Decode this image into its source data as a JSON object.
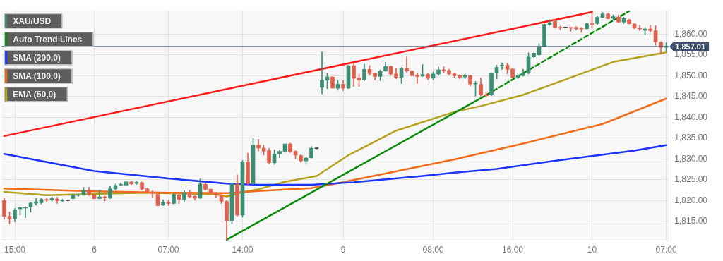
{
  "chart_data": {
    "type": "candlestick",
    "categories": [
      null,
      null,
      "15:00",
      null,
      null,
      null,
      null,
      null,
      null,
      null,
      null,
      null,
      null,
      null,
      null,
      null,
      null,
      "6",
      null,
      null,
      null,
      null,
      null,
      null,
      null,
      null,
      null,
      null,
      null,
      null,
      null,
      "07:00",
      null,
      null,
      null,
      null,
      null,
      null,
      null,
      null,
      null,
      null,
      null,
      null,
      null,
      "14:00",
      null,
      null,
      null,
      null,
      null,
      null,
      null,
      null,
      null,
      null,
      null,
      null,
      null,
      null,
      null,
      null,
      null,
      null,
      "9",
      null,
      null,
      null,
      null,
      null,
      null,
      null,
      null,
      null,
      null,
      null,
      null,
      null,
      null,
      null,
      null,
      "08:00",
      null,
      null,
      null,
      null,
      null,
      null,
      null,
      null,
      null,
      null,
      null,
      null,
      null,
      null,
      "16:00",
      null,
      null,
      null,
      null,
      null,
      null,
      null,
      null,
      null,
      null,
      null,
      null,
      null,
      null,
      "10",
      null,
      null,
      null,
      null,
      null,
      null,
      null,
      null,
      null,
      null,
      null,
      null,
      null,
      "07:00"
    ],
    "series": [
      {
        "name": "XAU/USD",
        "type": "candlestick",
        "color": "#3d8f74",
        "ohlc": [
          [
            1820,
            1820.5,
            1815.5,
            1816.2
          ],
          [
            1816.2,
            1817.3,
            1814.4,
            1815.6
          ],
          [
            1815.7,
            1818.1,
            1814.9,
            1817.8
          ],
          [
            1818,
            1818.4,
            1816.6,
            1818.3
          ],
          [
            1818.2,
            1818.5,
            1815.9,
            1818.4
          ],
          [
            1818.5,
            1819.6,
            1817.2,
            1819.4
          ],
          [
            1819.4,
            1820.5,
            1818.9,
            1819.7
          ],
          [
            1819.5,
            1820.5,
            1819.2,
            1820.3
          ],
          [
            1820.2,
            1820.7,
            1819.7,
            1820.1
          ],
          [
            1820.2,
            1820.9,
            1819.8,
            1820.5
          ],
          [
            1820.4,
            1820.8,
            1819.3,
            1820
          ],
          [
            1819.9,
            1820.3,
            1819.8,
            1820.1
          ],
          [
            1820,
            1820.1,
            1819.9,
            1820
          ],
          [
            1820.5,
            1821.6,
            1820.4,
            1821.3
          ],
          [
            1821.2,
            1821.6,
            1821,
            1821.4
          ],
          [
            1821.3,
            1823.2,
            1821.2,
            1822.4
          ],
          [
            1822.4,
            1823.2,
            1821.2,
            1821.5
          ],
          [
            1821.5,
            1821.6,
            1820.4,
            1820.5
          ],
          [
            1820.5,
            1822.4,
            1820.4,
            1820.9
          ],
          [
            1820.9,
            1821.1,
            1819.9,
            1820.7
          ],
          [
            1820.6,
            1823.4,
            1820.5,
            1822.8
          ],
          [
            1822.8,
            1824,
            1822.6,
            1823.6
          ],
          [
            1823.7,
            1824.2,
            1823.6,
            1823.9
          ],
          [
            1823.7,
            1824.7,
            1823.5,
            1824.5
          ],
          [
            1824.5,
            1824.6,
            1823.8,
            1824
          ],
          [
            1824.1,
            1824.7,
            1823.9,
            1824.4
          ],
          [
            1824.3,
            1824.5,
            1822.5,
            1822.8
          ],
          [
            1822.8,
            1823,
            1821.9,
            1822.2
          ],
          [
            1822,
            1822.4,
            1820.8,
            1821.7
          ],
          [
            1821.5,
            1821.6,
            1818.7,
            1818.8
          ],
          [
            1818.9,
            1820.2,
            1818.8,
            1819.6
          ],
          [
            1819.6,
            1820,
            1818.8,
            1819.3
          ],
          [
            1819.3,
            1821.6,
            1819.2,
            1821.5
          ],
          [
            1821.3,
            1821.6,
            1819.3,
            1820.3
          ],
          [
            1820.3,
            1822.4,
            1819.6,
            1821.9
          ],
          [
            1821.9,
            1822.5,
            1820.7,
            1820.9
          ],
          [
            1821,
            1821.2,
            1820.1,
            1820.6
          ],
          [
            1820.6,
            1825.2,
            1820.5,
            1824
          ],
          [
            1823.9,
            1824.3,
            1822.5,
            1822.7
          ],
          [
            1822.7,
            1822.8,
            1821.6,
            1821.9
          ],
          [
            1821.8,
            1822,
            1820.8,
            1821.4
          ],
          [
            1821.3,
            1821.5,
            1819.3,
            1819.8
          ],
          [
            1819.8,
            1820,
            1810.6,
            1815.2
          ],
          [
            1815.2,
            1824.3,
            1814.4,
            1824
          ],
          [
            1824,
            1826.2,
            1816.2,
            1816.5
          ],
          [
            1816.5,
            1829.6,
            1816,
            1829.3
          ],
          [
            1829.3,
            1831.4,
            1823.9,
            1824.1
          ],
          [
            1824.1,
            1834.9,
            1823.9,
            1833.3
          ],
          [
            1833.3,
            1834.7,
            1831.9,
            1832.6
          ],
          [
            1832.6,
            1833.3,
            1830.9,
            1831.9
          ],
          [
            1832,
            1832.5,
            1828.8,
            1829.1
          ],
          [
            1829.1,
            1832.2,
            1828.7,
            1831.2
          ],
          [
            1831.2,
            1832.2,
            1830.3,
            1831.8
          ],
          [
            1831.8,
            1833.6,
            1831.6,
            1833.6
          ],
          [
            1833.6,
            1833.8,
            1831.5,
            1831.8
          ],
          [
            1831.8,
            1832,
            1830.1,
            1830.9
          ],
          [
            1830.8,
            1831,
            1829.2,
            1829.5
          ],
          [
            1829.5,
            1830.4,
            1828.9,
            1830.2
          ],
          [
            1830.3,
            1833,
            1830.2,
            1832.6
          ],
          [
            1832.5,
            1832.6,
            1832.4,
            1832.5
          ],
          [
            1847.2,
            1855.7,
            1845.6,
            1848.9
          ],
          [
            1848.9,
            1850.5,
            1846.9,
            1849.7
          ],
          [
            1849.7,
            1849.8,
            1847,
            1847
          ],
          [
            1847,
            1848.8,
            1846.5,
            1847.9
          ],
          [
            1847.9,
            1848.8,
            1846.4,
            1847
          ],
          [
            1847,
            1852.5,
            1846.9,
            1852.4
          ],
          [
            1852.4,
            1852.9,
            1847.4,
            1849.4
          ],
          [
            1849.4,
            1850.4,
            1847.4,
            1849
          ],
          [
            1849,
            1852.8,
            1848.8,
            1851.5
          ],
          [
            1851.5,
            1852.4,
            1850.1,
            1850.5
          ],
          [
            1850.5,
            1850.6,
            1848.9,
            1849.8
          ],
          [
            1849.8,
            1851.4,
            1848.8,
            1851.1
          ],
          [
            1851.1,
            1853.2,
            1851,
            1852.2
          ],
          [
            1852.2,
            1852.4,
            1850.1,
            1850.4
          ],
          [
            1850.4,
            1851.8,
            1849.3,
            1849.6
          ],
          [
            1849.6,
            1852,
            1848.1,
            1851.8
          ],
          [
            1851.8,
            1854.5,
            1850.8,
            1851.1
          ],
          [
            1851.1,
            1851.3,
            1849.9,
            1850
          ],
          [
            1850.1,
            1850.5,
            1848.1,
            1849.8
          ],
          [
            1849.9,
            1852.7,
            1849.8,
            1850.3
          ],
          [
            1850.3,
            1850.5,
            1849,
            1849.4
          ],
          [
            1849.4,
            1850.9,
            1849,
            1850.4
          ],
          [
            1850.4,
            1852.1,
            1850.1,
            1851.4
          ],
          [
            1851.4,
            1852.2,
            1850.7,
            1851.2
          ],
          [
            1851.2,
            1851.5,
            1850.2,
            1850.4
          ],
          [
            1850.4,
            1850.6,
            1849.6,
            1850
          ],
          [
            1850,
            1850.2,
            1849.2,
            1849.6
          ],
          [
            1849.7,
            1850.4,
            1849.3,
            1850
          ],
          [
            1850,
            1850.1,
            1847.5,
            1848
          ],
          [
            1848,
            1848.6,
            1845.1,
            1848.1
          ],
          [
            1847.9,
            1849.5,
            1845.1,
            1845.4
          ],
          [
            1845.4,
            1846.1,
            1844.8,
            1845.2
          ],
          [
            1845.4,
            1850.7,
            1845.2,
            1850.6
          ],
          [
            1850.6,
            1852.5,
            1849.2,
            1852
          ],
          [
            1852.3,
            1853.1,
            1851.5,
            1852.5
          ],
          [
            1852.5,
            1852.9,
            1850.4,
            1851.5
          ],
          [
            1851.6,
            1851.8,
            1849.5,
            1849.6
          ],
          [
            1849.6,
            1850.4,
            1849.3,
            1850
          ],
          [
            1850,
            1851.5,
            1849.9,
            1850.5
          ],
          [
            1850.6,
            1855.5,
            1850.4,
            1854.5
          ],
          [
            1854.5,
            1855.5,
            1854.4,
            1855.4
          ],
          [
            1855,
            1857.7,
            1854.7,
            1857
          ],
          [
            1857,
            1862.4,
            1857,
            1862.3
          ],
          [
            1862.3,
            1863.4,
            1862.1,
            1862.7
          ],
          [
            1863.2,
            1863.5,
            1861.4,
            1861.6
          ],
          [
            1861.6,
            1861.9,
            1861,
            1861.4
          ],
          [
            1861.5,
            1861.5,
            1861.5,
            1861.5
          ],
          [
            1861.6,
            1861.6,
            1860.7,
            1861.4
          ],
          [
            1861.6,
            1861.8,
            1861,
            1861.3
          ],
          [
            1861.4,
            1861.6,
            1860.4,
            1861.2
          ],
          [
            1861.3,
            1862.7,
            1861.2,
            1862.5
          ],
          [
            1862.5,
            1865.4,
            1861.4,
            1862.3
          ],
          [
            1862.5,
            1864.3,
            1862.3,
            1864
          ],
          [
            1864,
            1865.2,
            1864,
            1864.8
          ],
          [
            1864.8,
            1865,
            1863.6,
            1863.7
          ],
          [
            1863.8,
            1864.6,
            1863.5,
            1864.2
          ],
          [
            1864.1,
            1864.6,
            1862.8,
            1862.9
          ],
          [
            1862.9,
            1864,
            1862.5,
            1863.7
          ],
          [
            1863.4,
            1863.6,
            1862.4,
            1862.5
          ],
          [
            1862.4,
            1862.5,
            1861.3,
            1861.4
          ],
          [
            1861.4,
            1862.1,
            1860.8,
            1861.2
          ],
          [
            1860.9,
            1861.6,
            1859.8,
            1861.2
          ],
          [
            1861.2,
            1862.1,
            1860.5,
            1860.8
          ],
          [
            1860.8,
            1862,
            1857.3,
            1858.1
          ],
          [
            1858,
            1858.2,
            1855.2,
            1856.8
          ],
          [
            1856.8,
            1857.9,
            1856,
            1857.01
          ]
        ],
        "colors": [
          "#e0604f",
          "#e0604f",
          "#3d8f74",
          "#3d8f74",
          "#3d8f74",
          "#3d8f74",
          "#3d8f74",
          "#3d8f74",
          "#e0604f",
          "#3d8f74",
          "#e0604f",
          "#3d8f74",
          "#444444",
          "#3d8f74",
          "#3d8f74",
          "#3d8f74",
          "#e0604f",
          "#e0604f",
          "#3d8f74",
          "#e0604f",
          "#3d8f74",
          "#3d8f74",
          "#3d8f74",
          "#3d8f74",
          "#e0604f",
          "#3d8f74",
          "#e0604f",
          "#e0604f",
          "#e0604f",
          "#e0604f",
          "#3d8f74",
          "#e0604f",
          "#3d8f74",
          "#e0604f",
          "#3d8f74",
          "#e0604f",
          "#e0604f",
          "#3d8f74",
          "#e0604f",
          "#e0604f",
          "#e0604f",
          "#e0604f",
          "#e0604f",
          "#3d8f74",
          "#e0604f",
          "#3d8f74",
          "#e0604f",
          "#3d8f74",
          "#e0604f",
          "#e0604f",
          "#e0604f",
          "#3d8f74",
          "#3d8f74",
          "#3d8f74",
          "#e0604f",
          "#e0604f",
          "#e0604f",
          "#3d8f74",
          "#3d8f74",
          "#444444",
          "#3d8f74",
          "#3d8f74",
          "#e0604f",
          "#3d8f74",
          "#e0604f",
          "#3d8f74",
          "#e0604f",
          "#e0604f",
          "#3d8f74",
          "#e0604f",
          "#e0604f",
          "#3d8f74",
          "#3d8f74",
          "#e0604f",
          "#e0604f",
          "#3d8f74",
          "#e0604f",
          "#e0604f",
          "#e0604f",
          "#3d8f74",
          "#e0604f",
          "#3d8f74",
          "#3d8f74",
          "#e0604f",
          "#e0604f",
          "#e0604f",
          "#e0604f",
          "#3d8f74",
          "#e0604f",
          "#3d8f74",
          "#e0604f",
          "#e0604f",
          "#3d8f74",
          "#3d8f74",
          "#3d8f74",
          "#e0604f",
          "#e0604f",
          "#3d8f74",
          "#3d8f74",
          "#3d8f74",
          "#3d8f74",
          "#3d8f74",
          "#3d8f74",
          "#3d8f74",
          "#e0604f",
          "#e0604f",
          "#444444",
          "#e0604f",
          "#e0604f",
          "#e0604f",
          "#3d8f74",
          "#e0604f",
          "#3d8f74",
          "#3d8f74",
          "#e0604f",
          "#3d8f74",
          "#e0604f",
          "#3d8f74",
          "#e0604f",
          "#e0604f",
          "#e0604f",
          "#3d8f74",
          "#e0604f",
          "#e0604f",
          "#e0604f",
          "#3d8f74"
        ]
      },
      {
        "name": "Auto Trend Lines",
        "type": "line",
        "color": "#0a8a0a",
        "values": [
          null,
          null,
          null,
          null,
          null,
          null,
          null,
          null,
          null,
          null,
          null,
          null,
          null,
          null,
          null,
          null,
          null,
          null,
          null,
          null,
          null,
          null,
          null,
          null,
          null,
          null,
          null,
          null,
          null,
          null,
          null,
          null,
          null,
          null,
          null,
          null,
          null,
          null,
          null,
          null,
          null,
          null,
          1810.6,
          null,
          null,
          null,
          null,
          null,
          null,
          null,
          null,
          null,
          null,
          null,
          null,
          null,
          null,
          null,
          null,
          null,
          null,
          null,
          null,
          null,
          null,
          null,
          null,
          null,
          null,
          null,
          null,
          null,
          null,
          null,
          null,
          null,
          null,
          null,
          null,
          null,
          null,
          null,
          null,
          null,
          null,
          null,
          null,
          null,
          null,
          null,
          1844.6,
          null,
          null,
          null,
          null,
          null,
          null,
          null,
          null,
          null,
          null,
          null,
          null,
          null,
          null,
          null,
          null,
          null,
          null,
          null,
          null,
          null,
          null,
          null,
          null,
          null,
          null,
          null,
          null,
          null,
          null,
          null,
          null,
          null,
          null,
          null
        ]
      },
      {
        "type": "line",
        "color": "#0a8a0a",
        "line_style": "dashed",
        "values": [
          null,
          null,
          null,
          null,
          null,
          null,
          null,
          null,
          null,
          null,
          null,
          null,
          null,
          null,
          null,
          null,
          null,
          null,
          null,
          null,
          null,
          null,
          null,
          null,
          null,
          null,
          null,
          null,
          null,
          null,
          null,
          null,
          null,
          null,
          null,
          null,
          null,
          null,
          null,
          null,
          null,
          null,
          null,
          null,
          null,
          null,
          null,
          null,
          null,
          null,
          null,
          null,
          null,
          null,
          null,
          null,
          null,
          null,
          null,
          null,
          null,
          null,
          null,
          null,
          null,
          null,
          null,
          null,
          null,
          null,
          null,
          null,
          null,
          null,
          null,
          null,
          null,
          null,
          null,
          null,
          null,
          null,
          null,
          null,
          null,
          null,
          null,
          null,
          null,
          null,
          1844.6,
          null,
          null,
          null,
          null,
          null,
          null,
          null,
          null,
          null,
          null,
          null,
          null,
          null,
          null,
          null,
          null,
          null,
          null,
          null,
          null,
          null,
          null,
          null,
          null,
          null,
          null,
          null,
          1865.5,
          null,
          null,
          null,
          null,
          null,
          null,
          null
        ]
      },
      {
        "type": "line",
        "color": "#ff1a1a",
        "values": [
          1835.5,
          null,
          null,
          null,
          null,
          null,
          null,
          null,
          null,
          null,
          null,
          null,
          null,
          null,
          null,
          null,
          null,
          null,
          null,
          null,
          null,
          null,
          null,
          null,
          null,
          null,
          null,
          null,
          null,
          null,
          null,
          null,
          null,
          null,
          null,
          null,
          null,
          null,
          null,
          null,
          null,
          null,
          null,
          null,
          null,
          null,
          null,
          null,
          null,
          null,
          null,
          null,
          null,
          null,
          null,
          null,
          null,
          null,
          null,
          null,
          null,
          null,
          null,
          null,
          null,
          null,
          null,
          null,
          null,
          null,
          null,
          null,
          null,
          null,
          null,
          null,
          null,
          null,
          null,
          null,
          null,
          null,
          null,
          null,
          null,
          null,
          null,
          null,
          null,
          null,
          null,
          null,
          null,
          null,
          null,
          null,
          null,
          null,
          null,
          null,
          null,
          null,
          null,
          null,
          null,
          null,
          null,
          null,
          null,
          null,
          null,
          1865.3,
          null,
          null,
          null,
          null,
          null,
          null,
          null,
          null,
          null,
          null,
          null,
          null,
          null,
          null
        ]
      },
      {
        "name": "SMA (200,0)",
        "type": "line",
        "color": "#1a33ff",
        "values": [
          1831.2,
          null,
          null,
          null,
          null,
          null,
          null,
          null,
          null,
          null,
          null,
          null,
          null,
          null,
          null,
          null,
          null,
          1827.1,
          null,
          null,
          null,
          null,
          null,
          null,
          null,
          null,
          null,
          null,
          null,
          null,
          null,
          1825.3,
          null,
          null,
          null,
          null,
          null,
          null,
          null,
          null,
          null,
          null,
          1824.1,
          null,
          null,
          null,
          null,
          null,
          1823.8,
          null,
          null,
          null,
          null,
          null,
          null,
          null,
          null,
          null,
          1823.8,
          null,
          null,
          null,
          null,
          null,
          null,
          null,
          1824.4,
          null,
          null,
          null,
          null,
          null,
          null,
          null,
          null,
          null,
          null,
          null,
          null,
          1825.9,
          null,
          null,
          null,
          null,
          null,
          1826.7,
          null,
          null,
          null,
          null,
          null,
          null,
          null,
          1827.6,
          null,
          null,
          null,
          null,
          null,
          null,
          null,
          null,
          null,
          null,
          null,
          null,
          1829.9,
          null,
          null,
          null,
          null,
          null,
          null,
          null,
          null,
          null,
          null,
          null,
          null,
          1832.0,
          null,
          null,
          null,
          null,
          null,
          1833.3
        ]
      },
      {
        "name": "SMA (100,0)",
        "type": "line",
        "color": "#f26b1a",
        "values": [
          1822.9,
          null,
          null,
          null,
          null,
          null,
          null,
          null,
          null,
          null,
          null,
          null,
          null,
          null,
          null,
          null,
          null,
          1822.2,
          null,
          null,
          null,
          null,
          null,
          null,
          null,
          null,
          null,
          null,
          null,
          null,
          null,
          1821.9,
          null,
          null,
          null,
          null,
          null,
          null,
          null,
          null,
          null,
          null,
          1821.8,
          null,
          null,
          null,
          null,
          null,
          1822.3,
          null,
          null,
          null,
          null,
          null,
          null,
          null,
          null,
          null,
          1823.0,
          null,
          null,
          null,
          1823.9,
          null,
          null,
          null,
          null,
          null,
          null,
          null,
          null,
          null,
          null,
          null,
          null,
          null,
          null,
          null,
          null,
          null,
          null,
          null,
          null,
          null,
          null,
          1829.9,
          null,
          null,
          null,
          null,
          null,
          null,
          null,
          null,
          null,
          null,
          null,
          null,
          1833.7,
          null,
          null,
          null,
          null,
          null,
          null,
          null,
          null,
          null,
          null,
          null,
          null,
          null,
          null,
          1838.4,
          null,
          null,
          null,
          null,
          null,
          null,
          null,
          null,
          null,
          null,
          null,
          1844.5
        ]
      },
      {
        "name": "EMA (50,0)",
        "type": "line",
        "color": "#b5a21c",
        "values": [
          1822.1,
          null,
          null,
          null,
          null,
          null,
          null,
          null,
          1821.3,
          null,
          null,
          null,
          null,
          null,
          null,
          null,
          null,
          1821.6,
          null,
          null,
          null,
          null,
          null,
          null,
          null,
          null,
          1821.9,
          null,
          null,
          null,
          null,
          null,
          null,
          null,
          null,
          null,
          null,
          null,
          null,
          null,
          1821.5,
          null,
          1821.0,
          null,
          null,
          1822.0,
          null,
          null,
          1822.7,
          null,
          null,
          null,
          null,
          1824.5,
          null,
          null,
          null,
          null,
          null,
          1825.9,
          null,
          null,
          null,
          null,
          null,
          1830.9,
          null,
          null,
          null,
          null,
          null,
          null,
          null,
          null,
          1836.8,
          null,
          null,
          null,
          null,
          null,
          null,
          null,
          null,
          null,
          null,
          1841.3,
          null,
          null,
          null,
          null,
          1842.7,
          null,
          null,
          null,
          null,
          null,
          null,
          null,
          1845.4,
          null,
          null,
          null,
          null,
          null,
          null,
          null,
          1849.1,
          null,
          null,
          null,
          null,
          null,
          null,
          null,
          null,
          1853.3,
          null,
          null,
          null,
          null,
          null,
          null,
          null,
          null,
          null,
          1855.6
        ]
      }
    ],
    "ylim": [
      1810.3,
      1865.6
    ],
    "yticks": [
      {
        "value": 1815,
        "label": "1,815.00"
      },
      {
        "value": 1820,
        "label": "1,820.00"
      },
      {
        "value": 1825,
        "label": "1,825.00"
      },
      {
        "value": 1830,
        "label": "1,830.00"
      },
      {
        "value": 1835,
        "label": "1,835.00"
      },
      {
        "value": 1840,
        "label": "1,840.00"
      },
      {
        "value": 1845,
        "label": "1,845.00"
      },
      {
        "value": 1850,
        "label": "1,850.00"
      },
      {
        "value": 1855,
        "label": "1,855.00"
      },
      {
        "value": 1860,
        "label": "1,860.00"
      }
    ],
    "ref_lines": [
      {
        "axis": "y",
        "value": 1857.01,
        "label": "1,857.01",
        "color": "#3d4f6e"
      }
    ],
    "grid": true,
    "legend": "top left"
  }
}
